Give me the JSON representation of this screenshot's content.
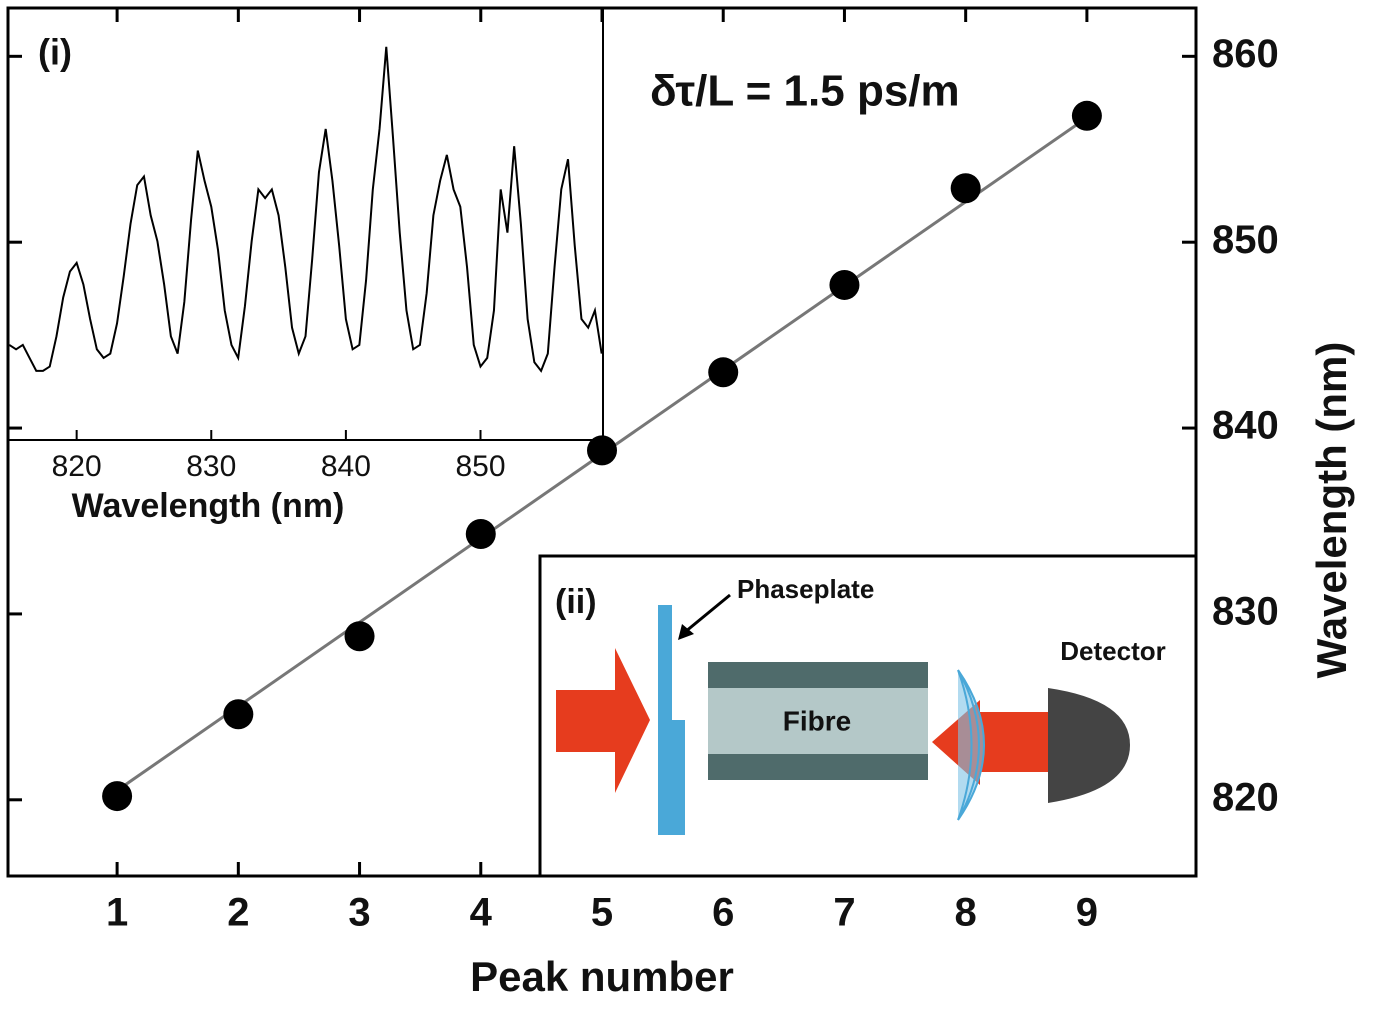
{
  "chart_data": [
    {
      "type": "scatter",
      "x": [
        1,
        2,
        3,
        4,
        5,
        6,
        7,
        8,
        9
      ],
      "values": [
        820.2,
        824.6,
        828.8,
        834.3,
        838.8,
        843.0,
        847.7,
        852.9,
        856.8
      ],
      "color": "#000000",
      "fit": {
        "x": [
          1,
          9
        ],
        "values": [
          820.5,
          856.7
        ],
        "color": "#777777"
      },
      "xlim": [
        0.1,
        9.9
      ],
      "ylim": [
        815.9,
        862.6
      ],
      "xticks": [
        1,
        2,
        3,
        4,
        5,
        6,
        7,
        8,
        9
      ],
      "yticks": [
        820,
        830,
        840,
        850,
        860
      ],
      "xlabel": "Peak number",
      "ylabel": "Wavelength (nm)",
      "annotation": "δτ/L = 1.5 ps/m"
    },
    {
      "type": "line",
      "panel_label": "(i)",
      "xlabel": "Wavelength (nm)",
      "color": "#000000",
      "xlim": [
        814.9,
        859.1
      ],
      "ylim": [
        0,
        1
      ],
      "xticks": [
        820,
        830,
        840,
        850
      ],
      "x": [
        815,
        815.5,
        816,
        816.5,
        817,
        817.5,
        818,
        818.5,
        819,
        819.5,
        820,
        820.5,
        821,
        821.5,
        822,
        822.5,
        823,
        823.5,
        824,
        824.5,
        825,
        825.5,
        826,
        826.5,
        827,
        827.5,
        828,
        828.5,
        829,
        829.5,
        830,
        830.5,
        831,
        831.5,
        832,
        832.5,
        833,
        833.5,
        834,
        834.5,
        835,
        835.5,
        836,
        836.5,
        837,
        837.5,
        838,
        838.5,
        839,
        839.5,
        840,
        840.5,
        841,
        841.5,
        842,
        842.5,
        843,
        843.5,
        844,
        844.5,
        845,
        845.5,
        846,
        846.5,
        847,
        847.5,
        848,
        848.5,
        849,
        849.5,
        850,
        850.5,
        851,
        851.5,
        852,
        852.5,
        853,
        853.5,
        854,
        854.5,
        855,
        855.5,
        856,
        856.5,
        857,
        857.5,
        858,
        858.5,
        859
      ],
      "values": [
        0.22,
        0.21,
        0.22,
        0.19,
        0.16,
        0.16,
        0.17,
        0.24,
        0.33,
        0.39,
        0.41,
        0.36,
        0.28,
        0.21,
        0.19,
        0.2,
        0.27,
        0.38,
        0.5,
        0.59,
        0.61,
        0.52,
        0.46,
        0.36,
        0.24,
        0.2,
        0.32,
        0.51,
        0.67,
        0.6,
        0.54,
        0.44,
        0.3,
        0.22,
        0.19,
        0.31,
        0.46,
        0.58,
        0.56,
        0.58,
        0.52,
        0.4,
        0.26,
        0.2,
        0.24,
        0.42,
        0.62,
        0.72,
        0.6,
        0.45,
        0.28,
        0.21,
        0.22,
        0.37,
        0.58,
        0.72,
        0.91,
        0.7,
        0.48,
        0.3,
        0.21,
        0.22,
        0.34,
        0.52,
        0.6,
        0.66,
        0.58,
        0.54,
        0.4,
        0.22,
        0.17,
        0.19,
        0.3,
        0.58,
        0.48,
        0.68,
        0.5,
        0.28,
        0.18,
        0.16,
        0.2,
        0.4,
        0.58,
        0.65,
        0.45,
        0.28,
        0.26,
        0.3,
        0.2
      ]
    }
  ],
  "diagram": {
    "panel_label": "(ii)",
    "phaseplate": "Phaseplate",
    "fibre": "Fibre",
    "detector": "Detector"
  }
}
